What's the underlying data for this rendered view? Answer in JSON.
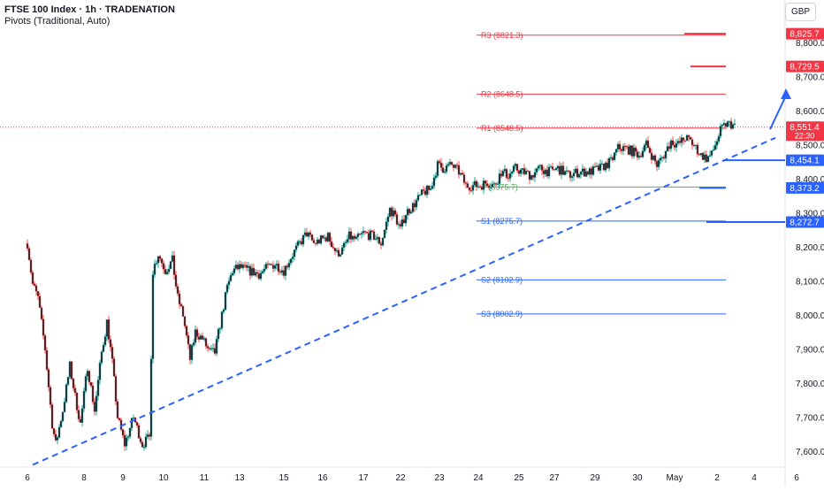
{
  "legend": {
    "title": "FTSE 100 Index · 1h · TRADENATION",
    "subtitle": "Pivots (Traditional, Auto)"
  },
  "currency_button": "GBP",
  "colors": {
    "up": "#26a69a",
    "down": "#ef5350",
    "candle_body": "#131722",
    "resistance": "#f23645",
    "pivot": "#4caf50",
    "support": "#2962ff",
    "trendline": "#2962ff",
    "axis_text": "#131722"
  },
  "chart_data": {
    "type": "candlestick",
    "title": "FTSE 100 Index · 1h · TRADENATION",
    "y_axis": {
      "range": [
        7560,
        8860
      ],
      "ticks": [
        "7,600.0",
        "7,700.0",
        "7,800.0",
        "7,900.0",
        "8,000.0",
        "8,100.0",
        "8,200.0",
        "8,300.0",
        "8,400.0",
        "8,500.0",
        "8,600.0",
        "8,700.0",
        "8,800.0"
      ],
      "tick_values": [
        7600,
        7700,
        7800,
        7900,
        8000,
        8100,
        8200,
        8300,
        8400,
        8500,
        8600,
        8700,
        8800
      ]
    },
    "x_axis": {
      "ticks": [
        "6",
        "8",
        "9",
        "10",
        "11",
        "13",
        "15",
        "16",
        "17",
        "22",
        "23",
        "24",
        "25",
        "27",
        "29",
        "30",
        "May",
        "2",
        "4",
        "6"
      ],
      "tick_bar_index": [
        0,
        32,
        54,
        77,
        100,
        120,
        145,
        167,
        190,
        211,
        233,
        255,
        278,
        298,
        321,
        345,
        366,
        390,
        411,
        435
      ]
    },
    "price_anchors": [
      [
        0,
        8210
      ],
      [
        3,
        8090
      ],
      [
        6,
        8050
      ],
      [
        10,
        7900
      ],
      [
        14,
        7680
      ],
      [
        16,
        7620
      ],
      [
        20,
        7720
      ],
      [
        24,
        7850
      ],
      [
        27,
        7760
      ],
      [
        30,
        7680
      ],
      [
        34,
        7850
      ],
      [
        38,
        7720
      ],
      [
        42,
        7890
      ],
      [
        45,
        7980
      ],
      [
        48,
        7860
      ],
      [
        51,
        7700
      ],
      [
        55,
        7620
      ],
      [
        60,
        7700
      ],
      [
        65,
        7620
      ],
      [
        69,
        7640
      ],
      [
        71,
        8130
      ],
      [
        74,
        8180
      ],
      [
        78,
        8130
      ],
      [
        82,
        8160
      ],
      [
        85,
        8050
      ],
      [
        88,
        8000
      ],
      [
        92,
        7870
      ],
      [
        95,
        7950
      ],
      [
        99,
        7930
      ],
      [
        103,
        7890
      ],
      [
        106,
        7890
      ],
      [
        110,
        8000
      ],
      [
        113,
        8080
      ],
      [
        116,
        8130
      ],
      [
        120,
        8140
      ],
      [
        125,
        8130
      ],
      [
        131,
        8120
      ],
      [
        136,
        8140
      ],
      [
        140,
        8150
      ],
      [
        145,
        8130
      ],
      [
        149,
        8170
      ],
      [
        154,
        8210
      ],
      [
        158,
        8240
      ],
      [
        162,
        8210
      ],
      [
        166,
        8220
      ],
      [
        170,
        8230
      ],
      [
        175,
        8180
      ],
      [
        178,
        8190
      ],
      [
        182,
        8230
      ],
      [
        186,
        8220
      ],
      [
        190,
        8240
      ],
      [
        196,
        8230
      ],
      [
        200,
        8210
      ],
      [
        205,
        8310
      ],
      [
        208,
        8290
      ],
      [
        211,
        8250
      ],
      [
        214,
        8300
      ],
      [
        218,
        8320
      ],
      [
        224,
        8360
      ],
      [
        228,
        8370
      ],
      [
        232,
        8440
      ],
      [
        235,
        8430
      ],
      [
        240,
        8440
      ],
      [
        244,
        8420
      ],
      [
        248,
        8380
      ],
      [
        252,
        8380
      ],
      [
        256,
        8380
      ],
      [
        260,
        8390
      ],
      [
        264,
        8380
      ],
      [
        268,
        8420
      ],
      [
        272,
        8410
      ],
      [
        276,
        8430
      ],
      [
        280,
        8420
      ],
      [
        285,
        8410
      ],
      [
        290,
        8430
      ],
      [
        295,
        8420
      ],
      [
        300,
        8430
      ],
      [
        306,
        8410
      ],
      [
        312,
        8420
      ],
      [
        318,
        8420
      ],
      [
        324,
        8430
      ],
      [
        330,
        8450
      ],
      [
        334,
        8490
      ],
      [
        338,
        8490
      ],
      [
        342,
        8480
      ],
      [
        346,
        8470
      ],
      [
        350,
        8500
      ],
      [
        354,
        8460
      ],
      [
        356,
        8440
      ],
      [
        360,
        8470
      ],
      [
        364,
        8510
      ],
      [
        368,
        8500
      ],
      [
        372,
        8520
      ],
      [
        375,
        8510
      ],
      [
        378,
        8490
      ],
      [
        381,
        8470
      ],
      [
        384,
        8460
      ],
      [
        387,
        8470
      ],
      [
        389,
        8500
      ],
      [
        392,
        8540
      ],
      [
        395,
        8560
      ],
      [
        398,
        8560
      ],
      [
        400,
        8552
      ]
    ],
    "pivots": [
      {
        "label": "R3",
        "value": 8821.3
      },
      {
        "label": "R2",
        "value": 8648.5
      },
      {
        "label": "R1",
        "value": 8548.5
      },
      {
        "label": "P",
        "value": 8375.7
      },
      {
        "label": "S1",
        "value": 8275.7
      },
      {
        "label": "S2",
        "value": 8102.9
      },
      {
        "label": "S3",
        "value": 8002.9
      }
    ],
    "price_tags": [
      {
        "value": 8825.7,
        "text": "8,825.7",
        "color": "resistance"
      },
      {
        "value": 8729.5,
        "text": "8,729.5",
        "color": "resistance"
      },
      {
        "value": 8551.4,
        "text": "8,551.4",
        "sub": "22:30",
        "color": "resistance"
      },
      {
        "value": 8454.1,
        "text": "8,454.1",
        "color": "support"
      },
      {
        "value": 8373.2,
        "text": "8,373.2",
        "color": "support"
      },
      {
        "value": 8272.7,
        "text": "8,272.7",
        "color": "support"
      }
    ],
    "trendline": {
      "from": [
        3,
        7560
      ],
      "to": [
        423,
        8520
      ]
    },
    "arrow": {
      "from": [
        420,
        8545
      ],
      "to": [
        429,
        8665
      ]
    }
  }
}
